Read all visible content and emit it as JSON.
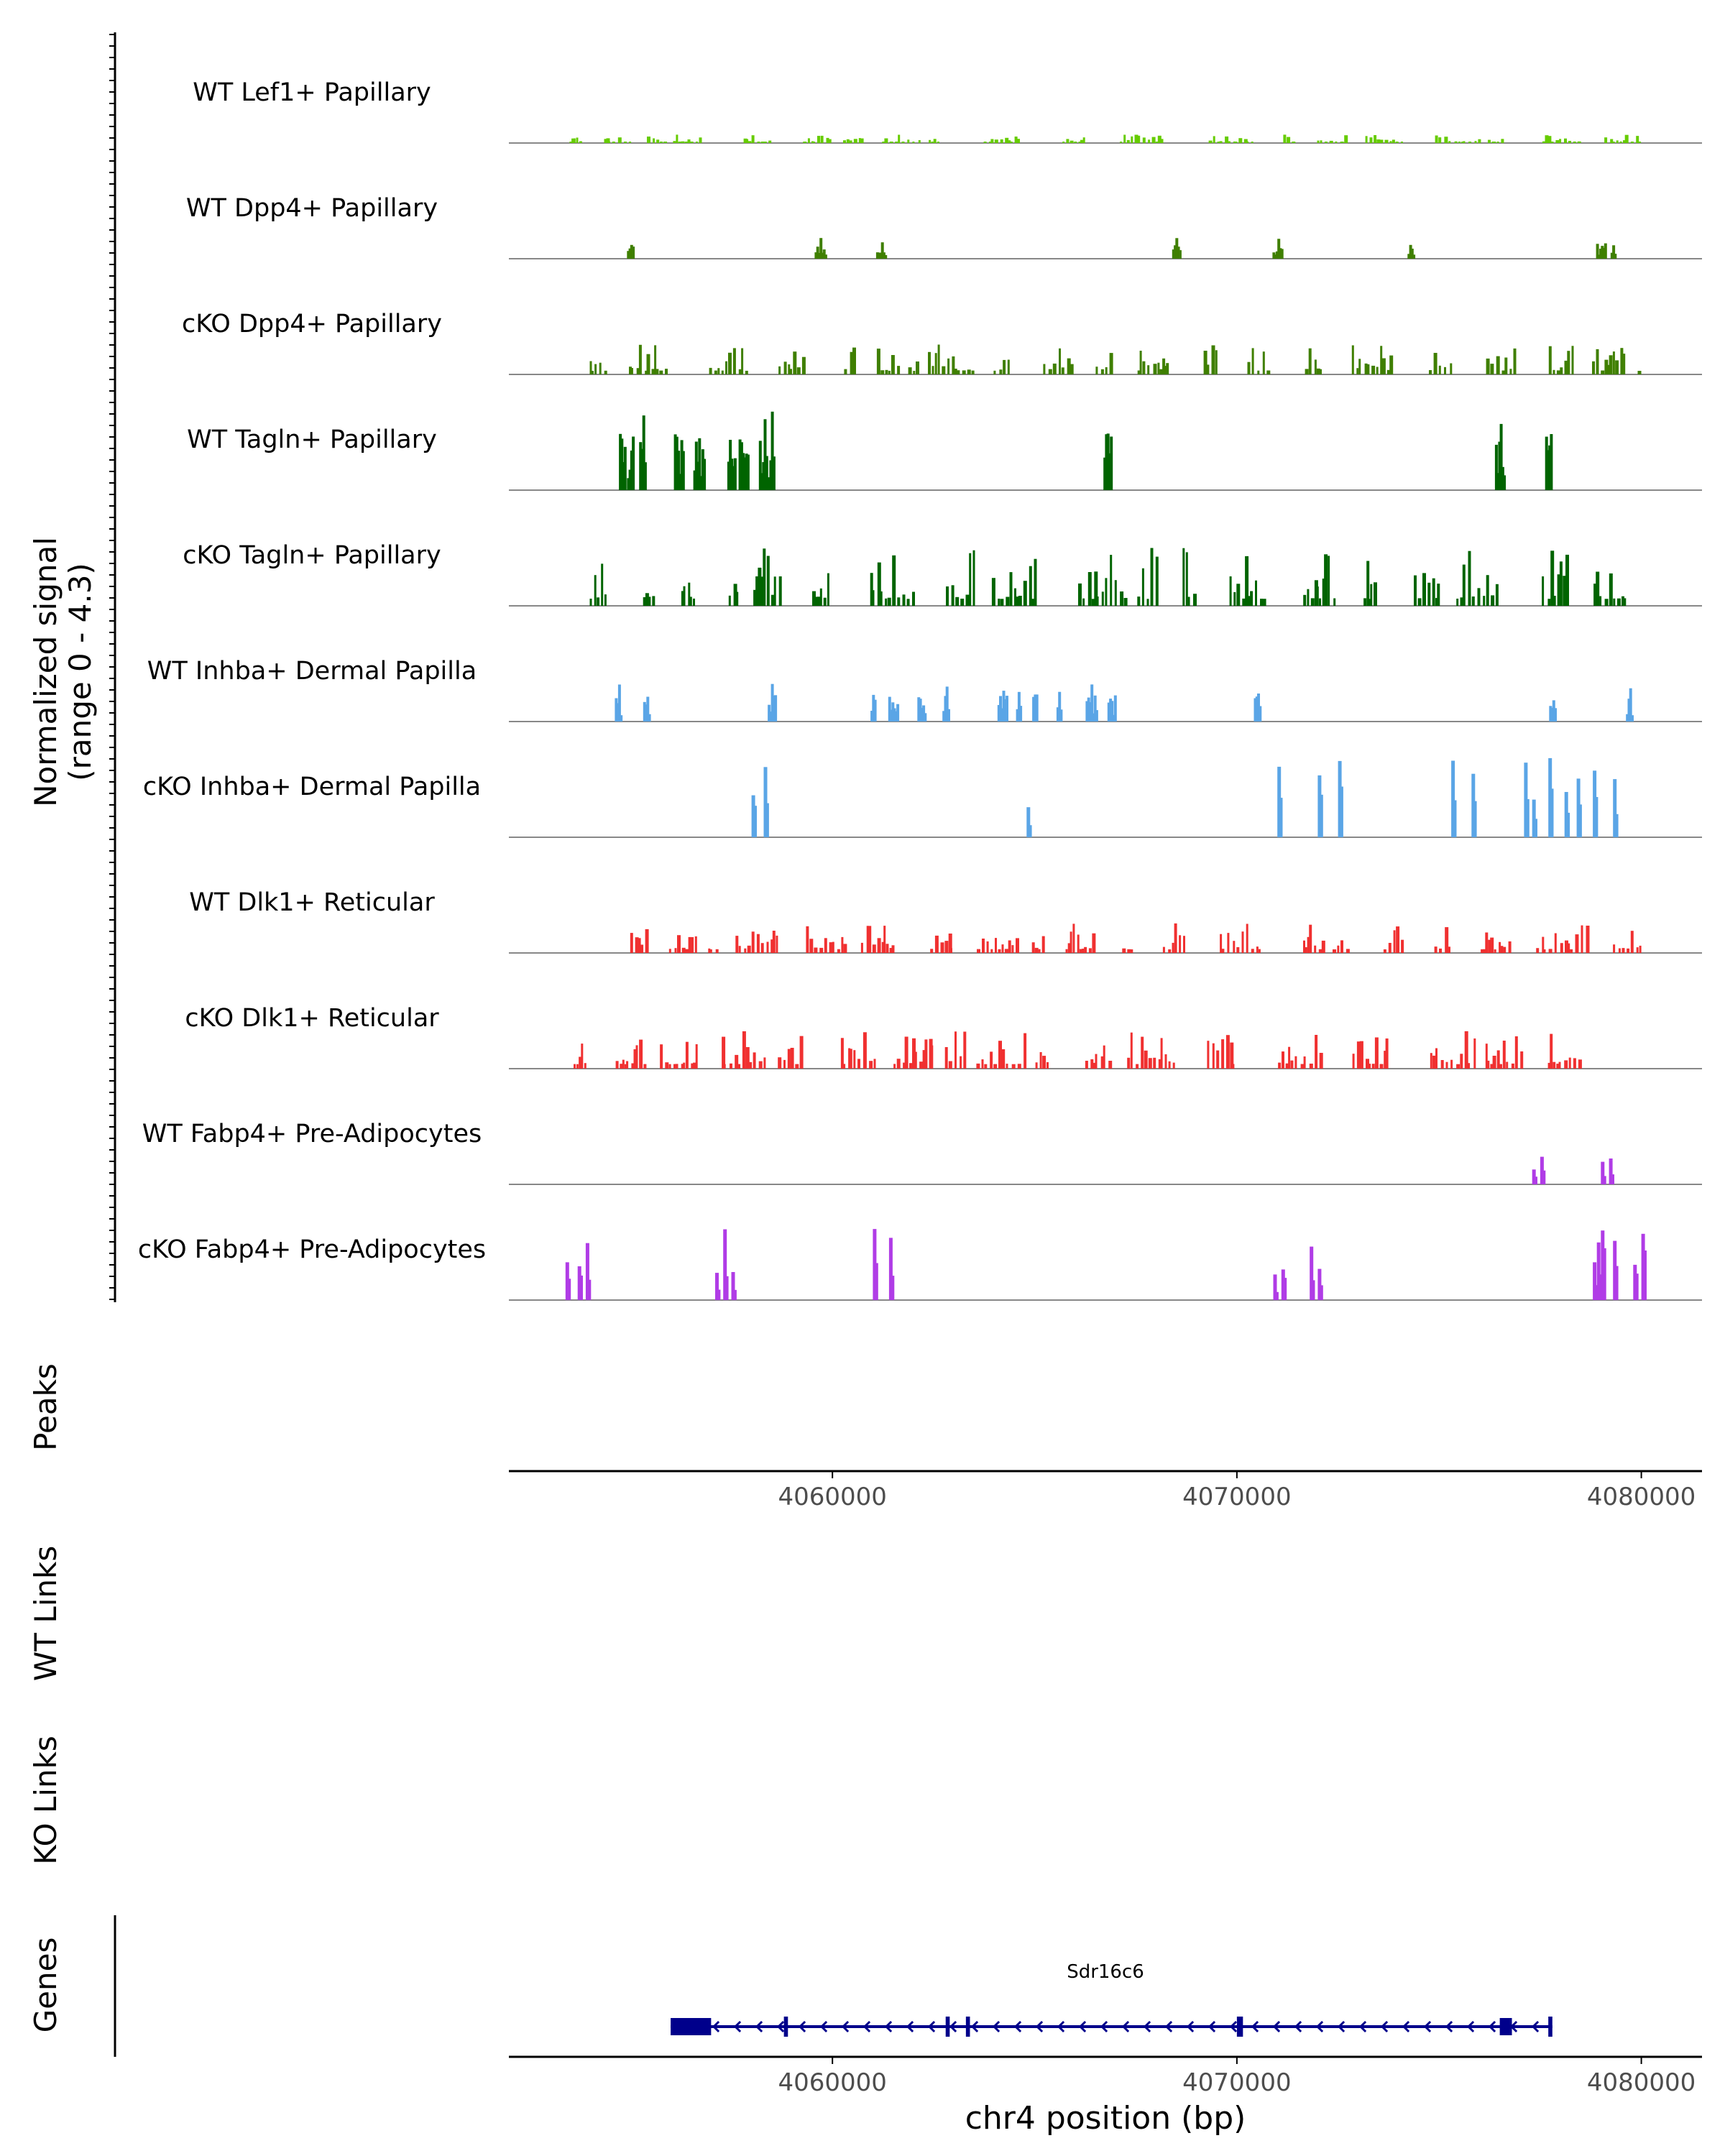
{
  "chart_data": {
    "type": "area",
    "title": "",
    "coverage": {
      "ylabel_line1": "Normalized signal",
      "ylabel_line2": "(range 0 - 4.3)",
      "ylim": [
        0,
        4.3
      ],
      "xlim": [
        4052000,
        4081500
      ],
      "tracks": [
        {
          "name": "WT Lef1+ Papillary",
          "color": "#66cc00",
          "style": "dense",
          "start": 4053500,
          "end": 4080000,
          "max": 0.45,
          "seed": 11
        },
        {
          "name": "WT Dpp4+ Papillary",
          "color": "#3f7f00",
          "style": "sparse",
          "start": 4053500,
          "end": 4080000,
          "max": 1.2,
          "seed": 23,
          "peaks": [
            4055000,
            4059700,
            4061200,
            4068500,
            4071000,
            4074300,
            4079000,
            4079300
          ]
        },
        {
          "name": "cKO Dpp4+ Papillary",
          "color": "#3f7f00",
          "style": "dense",
          "start": 4054000,
          "end": 4080000,
          "max": 1.6,
          "seed": 37
        },
        {
          "name": "WT Tagln+ Papillary",
          "color": "#006400",
          "style": "sparse",
          "start": 4053500,
          "end": 4080000,
          "max": 4.3,
          "seed": 41,
          "peaks": [
            4054800,
            4055000,
            4055300,
            4056200,
            4056700,
            4057500,
            4057800,
            4058300,
            4058500,
            4066800,
            4076500,
            4077700
          ]
        },
        {
          "name": "cKO Tagln+ Papillary",
          "color": "#006400",
          "style": "dense",
          "start": 4054000,
          "end": 4080000,
          "max": 3.1,
          "seed": 53
        },
        {
          "name": "WT Inhba+ Dermal Papilla",
          "color": "#5aa5e6",
          "style": "sparse",
          "start": 4053500,
          "end": 4080000,
          "max": 2.1,
          "seed": 61,
          "peaks": [
            4054700,
            4055400,
            4058500,
            4061000,
            4061500,
            4062200,
            4062800,
            4064200,
            4064600,
            4065000,
            4065600,
            4066400,
            4066900,
            4070500,
            4077800,
            4079700
          ]
        },
        {
          "name": "cKO Inhba+ Dermal Papilla",
          "color": "#5aa5e6",
          "style": "spikes",
          "start": 4053500,
          "end": 4080000,
          "max": 4.3,
          "seed": 73,
          "peaks": [
            4058000,
            4058300,
            4064800,
            4071000,
            4072000,
            4072500,
            4075300,
            4075800,
            4077100,
            4077300,
            4077700,
            4078100,
            4078400,
            4078800,
            4079300
          ]
        },
        {
          "name": "WT Dlk1+ Reticular",
          "color": "#f03030",
          "style": "dense",
          "start": 4055000,
          "end": 4080000,
          "max": 1.6,
          "seed": 83
        },
        {
          "name": "cKO Dlk1+ Reticular",
          "color": "#f03030",
          "style": "dense",
          "start": 4053600,
          "end": 4079000,
          "max": 2.0,
          "seed": 97
        },
        {
          "name": "WT Fabp4+ Pre-Adipocytes",
          "color": "#b03ce6",
          "style": "spikes",
          "start": 4053500,
          "end": 4080000,
          "max": 1.5,
          "seed": 101,
          "peaks": [
            4077300,
            4077500,
            4079000,
            4079200
          ]
        },
        {
          "name": "cKO Fabp4+ Pre-Adipocytes",
          "color": "#b03ce6",
          "style": "spikes",
          "start": 4053500,
          "end": 4080000,
          "max": 3.8,
          "seed": 113,
          "peaks": [
            4053400,
            4053700,
            4053900,
            4057100,
            4057300,
            4057500,
            4061000,
            4061400,
            4070900,
            4071100,
            4071800,
            4072000,
            4078800,
            4078900,
            4079000,
            4079300,
            4079800,
            4080000
          ]
        }
      ]
    },
    "peaks_label": "Peaks",
    "wt_links_label": "WT Links",
    "ko_links_label": "KO Links",
    "genes_label": "Genes",
    "x_ticks": [
      4060000,
      4070000,
      4080000
    ],
    "x_tick_labels": [
      "4060000",
      "4070000",
      "4080000"
    ],
    "xlabel": "chr4 position (bp)",
    "gene": {
      "name": "Sdr16c6",
      "strand": "-",
      "start": 4056000,
      "end": 4077800,
      "color": "#00008b",
      "exons": [
        [
          4056000,
          4057000
        ],
        [
          4058800,
          4058900
        ],
        [
          4062800,
          4062900
        ],
        [
          4063300,
          4063400
        ],
        [
          4070000,
          4070150
        ],
        [
          4076500,
          4076800
        ],
        [
          4077700,
          4077800
        ]
      ]
    }
  }
}
